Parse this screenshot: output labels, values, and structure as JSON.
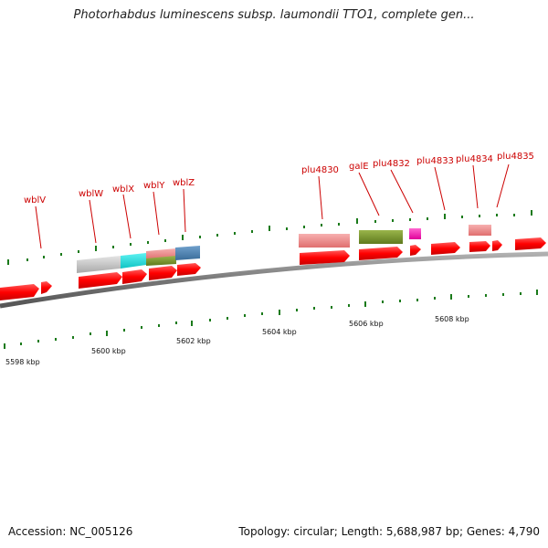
{
  "title": "Photorhabdus luminescens subsp. laumondii TTO1, complete gen...",
  "footer": {
    "accession": "Accession: NC_005126",
    "summary": "Topology: circular; Length: 5,688,987 bp; Genes: 4,790"
  },
  "genes": [
    {
      "name": "wblV"
    },
    {
      "name": "wblW"
    },
    {
      "name": "wblX"
    },
    {
      "name": "wblY"
    },
    {
      "name": "wblZ"
    },
    {
      "name": "plu4830"
    },
    {
      "name": "galE"
    },
    {
      "name": "plu4832"
    },
    {
      "name": "plu4833"
    },
    {
      "name": "plu4834"
    },
    {
      "name": "plu4835"
    }
  ],
  "scale_labels": [
    "5598 kbp",
    "5600 kbp",
    "5602 kbp",
    "5604 kbp",
    "5606 kbp",
    "5608 kbp"
  ],
  "colors": {
    "gene_red": "#ff0000",
    "label_red": "#cc0000",
    "tick_green": "#1a7a1a",
    "backbone_grey": "#7a7a7a"
  }
}
